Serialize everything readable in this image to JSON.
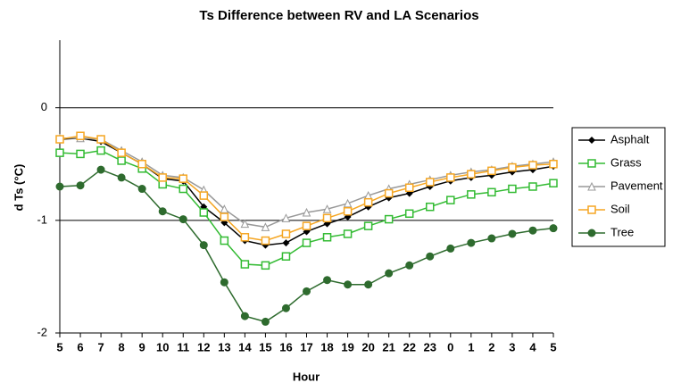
{
  "chart_data": {
    "type": "line",
    "title": "Ts Difference between RV and LA Scenarios",
    "x_label": "Hour",
    "y_label": "d Ts (°C)",
    "categories": [
      "5",
      "6",
      "7",
      "8",
      "9",
      "10",
      "11",
      "12",
      "13",
      "14",
      "15",
      "16",
      "17",
      "18",
      "19",
      "20",
      "21",
      "22",
      "23",
      "0",
      "1",
      "2",
      "3",
      "4",
      "5"
    ],
    "ylim": [
      -2,
      0.6
    ],
    "yticks": [
      -2,
      -1,
      0
    ],
    "grid": true,
    "legend": "right",
    "series": [
      {
        "name": "Asphalt",
        "color": "#000000",
        "marker": "diamond",
        "values": [
          -0.28,
          -0.27,
          -0.3,
          -0.4,
          -0.5,
          -0.63,
          -0.65,
          -0.88,
          -1.02,
          -1.18,
          -1.22,
          -1.2,
          -1.1,
          -1.03,
          -0.97,
          -0.88,
          -0.8,
          -0.76,
          -0.7,
          -0.65,
          -0.62,
          -0.6,
          -0.57,
          -0.55,
          -0.52
        ]
      },
      {
        "name": "Grass",
        "color": "#33bb33",
        "marker": "square",
        "values": [
          -0.4,
          -0.41,
          -0.38,
          -0.47,
          -0.54,
          -0.68,
          -0.72,
          -0.93,
          -1.18,
          -1.39,
          -1.4,
          -1.32,
          -1.2,
          -1.15,
          -1.12,
          -1.05,
          -0.99,
          -0.94,
          -0.88,
          -0.82,
          -0.77,
          -0.75,
          -0.72,
          -0.7,
          -0.67
        ]
      },
      {
        "name": "Pavement",
        "color": "#999999",
        "marker": "triangle",
        "values": [
          -0.27,
          -0.27,
          -0.28,
          -0.38,
          -0.48,
          -0.6,
          -0.62,
          -0.73,
          -0.9,
          -1.03,
          -1.06,
          -0.98,
          -0.93,
          -0.9,
          -0.85,
          -0.78,
          -0.72,
          -0.68,
          -0.64,
          -0.6,
          -0.57,
          -0.55,
          -0.52,
          -0.5,
          -0.48
        ]
      },
      {
        "name": "Soil",
        "color": "#f5a623",
        "marker": "square",
        "values": [
          -0.28,
          -0.25,
          -0.28,
          -0.4,
          -0.5,
          -0.62,
          -0.63,
          -0.78,
          -0.97,
          -1.15,
          -1.18,
          -1.12,
          -1.05,
          -0.98,
          -0.92,
          -0.84,
          -0.76,
          -0.71,
          -0.66,
          -0.62,
          -0.59,
          -0.56,
          -0.53,
          -0.51,
          -0.5
        ]
      },
      {
        "name": "Tree",
        "color": "#2e6b2e",
        "marker": "circle",
        "values": [
          -0.7,
          -0.69,
          -0.55,
          -0.62,
          -0.72,
          -0.92,
          -0.99,
          -1.22,
          -1.55,
          -1.85,
          -1.9,
          -1.78,
          -1.63,
          -1.53,
          -1.57,
          -1.57,
          -1.47,
          -1.4,
          -1.32,
          -1.25,
          -1.2,
          -1.16,
          -1.12,
          -1.09,
          -1.07
        ]
      }
    ]
  }
}
